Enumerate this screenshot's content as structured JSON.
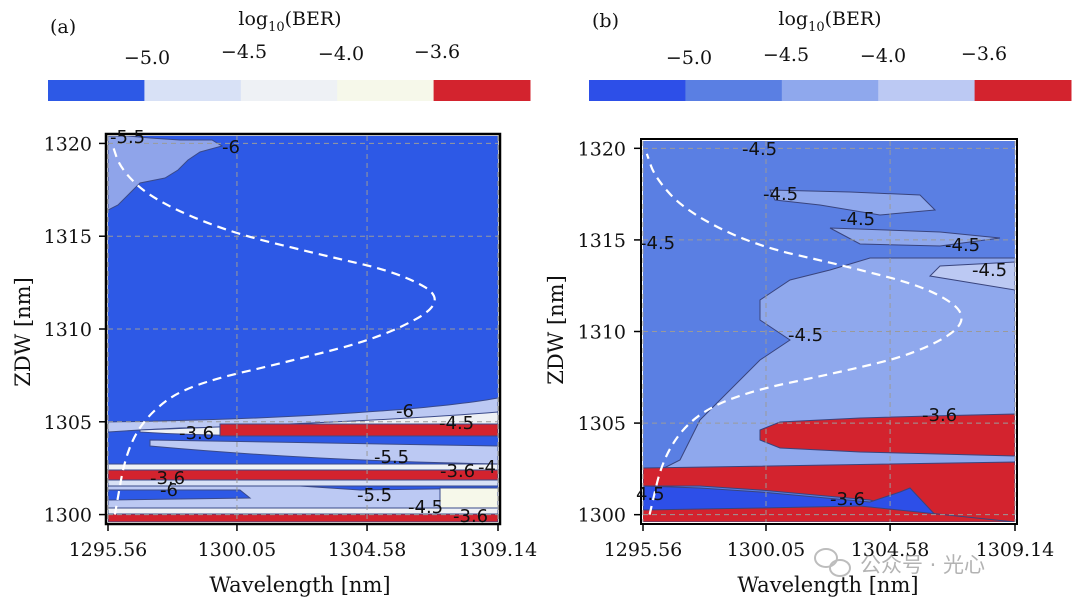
{
  "chart_data": [
    {
      "type": "heatmap",
      "panel_label": "(a)",
      "colorbar": {
        "title_base": "log",
        "title_sub": "10",
        "title_suffix": "(BER)",
        "tick_labels": [
          "−5.0",
          "−4.5",
          "−4.0",
          "−3.6"
        ],
        "colors": [
          "#2d59e6",
          "#d8e1f6",
          "#eef1f5",
          "#f6f8ea",
          "#d3232e"
        ]
      },
      "xlabel": "Wavelength [nm]",
      "ylabel": "ZDW [nm]",
      "x_ticks": [
        1295.56,
        1300.05,
        1304.58,
        1309.14
      ],
      "x_tick_labels": [
        "1295.56",
        "1300.05",
        "1304.58",
        "1309.14"
      ],
      "y_ticks": [
        1300,
        1305,
        1310,
        1315,
        1320
      ],
      "y_tick_labels": [
        "1300",
        "1305",
        "1310",
        "1315",
        "1320"
      ],
      "xlim": [
        1295.56,
        1309.14
      ],
      "ylim": [
        1299.6,
        1320.4
      ],
      "contour_labels": [
        "-5.5",
        "-6",
        "-6",
        "-4.5",
        "-3.6",
        "-5.5",
        "-3.6",
        "-3.6",
        "-4",
        "-6",
        "-5.5",
        "-4.5",
        "-3.6"
      ],
      "zdw_curve": {
        "description": "white dashed curve",
        "points": [
          [
            1295.8,
            1300.0
          ],
          [
            1296.2,
            1303.5
          ],
          [
            1297.0,
            1305.5
          ],
          [
            1298.4,
            1307.0
          ],
          [
            1302.0,
            1308.3
          ],
          [
            1305.2,
            1309.6
          ],
          [
            1307.4,
            1311.5
          ],
          [
            1305.8,
            1313.0
          ],
          [
            1302.7,
            1314.1
          ],
          [
            1299.6,
            1315.3
          ],
          [
            1297.1,
            1317.0
          ],
          [
            1296.0,
            1318.6
          ],
          [
            1295.7,
            1320.0
          ]
        ]
      }
    },
    {
      "type": "heatmap",
      "panel_label": "(b)",
      "colorbar": {
        "title_base": "log",
        "title_sub": "10",
        "title_suffix": "(BER)",
        "tick_labels": [
          "−5.0",
          "−4.5",
          "−4.0",
          "−3.6"
        ],
        "colors": [
          "#2d4fe8",
          "#5a7fe3",
          "#8fa8ed",
          "#bcc9f3",
          "#d3232e"
        ]
      },
      "xlabel": "Wavelength [nm]",
      "ylabel": "ZDW [nm]",
      "x_ticks": [
        1295.56,
        1300.05,
        1304.58,
        1309.14
      ],
      "x_tick_labels": [
        "1295.56",
        "1300.05",
        "1304.58",
        "1309.14"
      ],
      "y_ticks": [
        1300,
        1305,
        1310,
        1315,
        1320
      ],
      "y_tick_labels": [
        "1300",
        "1305",
        "1310",
        "1315",
        "1320"
      ],
      "xlim": [
        1295.56,
        1309.14
      ],
      "ylim": [
        1299.6,
        1320.4
      ],
      "contour_labels": [
        "-4.5",
        "-4.5",
        "-4.5",
        "-4.5",
        "-4.5",
        "-4.5",
        "-4.5",
        "-3.6",
        "4.5",
        "-3.6"
      ],
      "zdw_curve": {
        "description": "white dashed curve",
        "points": [
          [
            1295.8,
            1300.0
          ],
          [
            1296.3,
            1303.2
          ],
          [
            1297.4,
            1305.4
          ],
          [
            1299.3,
            1306.7
          ],
          [
            1302.5,
            1307.7
          ],
          [
            1305.6,
            1308.8
          ],
          [
            1307.6,
            1310.6
          ],
          [
            1306.2,
            1312.3
          ],
          [
            1302.9,
            1313.6
          ],
          [
            1299.6,
            1314.7
          ],
          [
            1297.1,
            1316.6
          ],
          [
            1296.0,
            1318.4
          ],
          [
            1295.7,
            1319.7
          ]
        ]
      }
    }
  ],
  "watermark": "公众号 · 光心"
}
